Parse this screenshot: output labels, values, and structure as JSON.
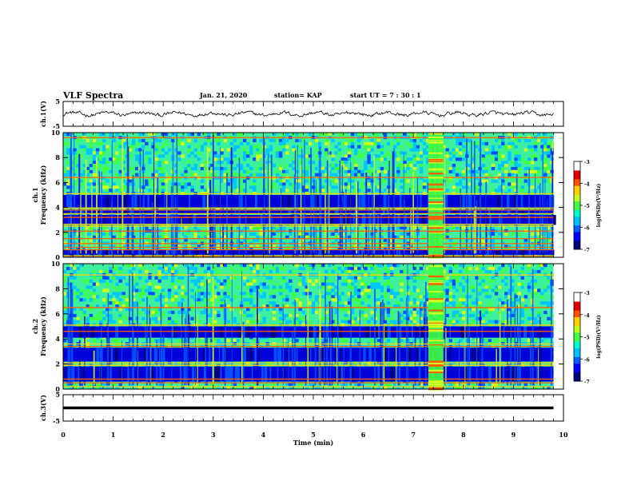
{
  "header": {
    "title": "VLF Spectra",
    "date": "Jan. 21, 2020",
    "station": "station= KAP",
    "start": "start  UT =  7 : 30 : 1"
  },
  "chart_data": {
    "type": "heatmap",
    "panels": [
      {
        "id": "ch1-waveform",
        "type": "line",
        "ylabel": "ch.1(V)",
        "ylim": [
          -5,
          5
        ],
        "yticks": [
          "5",
          "-5"
        ],
        "xlim": [
          0,
          10
        ],
        "mean": 0,
        "amplitude_range": [
          -1.2,
          1.2
        ]
      },
      {
        "id": "ch1-spectrogram",
        "type": "heatmap",
        "ylabel": "ch.1\nFrequency (kHz)",
        "ylim": [
          0,
          10
        ],
        "yticks": [
          "0",
          "2",
          "4",
          "6",
          "8",
          "10"
        ],
        "xlim": [
          0,
          10
        ],
        "colorbar": {
          "label": "log(PSD)(V²/Hz)",
          "range": [
            -7,
            -3
          ],
          "ticks": [
            "-3",
            "-4",
            "-5",
            "-6",
            "-7"
          ]
        },
        "dark_bands_khz": [
          [
            0.2,
            0.6
          ],
          [
            2.6,
            3.4
          ],
          [
            3.5,
            3.75
          ],
          [
            4.0,
            5.0
          ]
        ],
        "bright_lines_khz": [
          0.1,
          0.6,
          0.8,
          1.1,
          1.5,
          2.1,
          2.5,
          2.65,
          3.2,
          3.5,
          3.8,
          3.95,
          5.1,
          6.4,
          9.6
        ],
        "burst_min": [
          7.3,
          7.6
        ]
      },
      {
        "id": "ch2-spectrogram",
        "type": "heatmap",
        "ylabel": "ch.2\nFrequency (kHz)",
        "ylim": [
          0,
          10
        ],
        "yticks": [
          "0",
          "2",
          "4",
          "6",
          "8",
          "10"
        ],
        "xlim": [
          0,
          10
        ],
        "colorbar": {
          "label": "log(PSD)(V²/Hz)",
          "range": [
            -7,
            -3
          ],
          "ticks": [
            "-3",
            "-4",
            "-5",
            "-6",
            "-7"
          ]
        },
        "dark_bands_khz": [
          [
            0.6,
            1.8
          ],
          [
            2.2,
            3.3
          ],
          [
            4.1,
            5.0
          ]
        ],
        "bright_lines_khz": [
          0.2,
          0.5,
          0.8,
          1.9,
          2.1,
          3.4,
          3.6,
          4.6,
          5.1,
          6.5,
          9.1
        ],
        "burst_min": [
          7.3,
          7.6
        ]
      },
      {
        "id": "ch3-waveform",
        "type": "line",
        "ylabel": "ch.3(V)",
        "ylim": [
          -5,
          5
        ],
        "yticks": [
          "5",
          "-5"
        ],
        "xlim": [
          0,
          10
        ],
        "constant": 0
      }
    ],
    "x": {
      "label": "Time (min)",
      "range": [
        0,
        10
      ],
      "ticks": [
        "0",
        "1",
        "2",
        "3",
        "4",
        "5",
        "6",
        "7",
        "8",
        "9",
        "10"
      ],
      "data_end": 9.8
    },
    "palette": [
      "#00007a",
      "#0000d8",
      "#0050ff",
      "#00c8ff",
      "#00f0c0",
      "#40ff40",
      "#d0ff20",
      "#ffd000",
      "#ff6000",
      "#d80000",
      "#ffffff"
    ]
  }
}
